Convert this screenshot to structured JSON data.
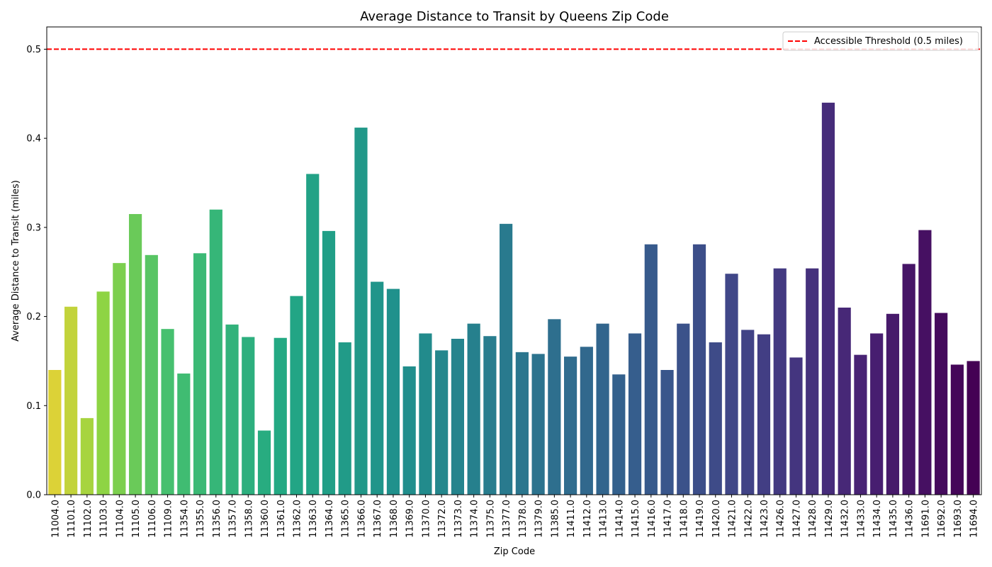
{
  "chart_data": {
    "type": "bar",
    "title": "Average Distance to Transit by Queens Zip Code",
    "xlabel": "Zip Code",
    "ylabel": "Average Distance to Transit (miles)",
    "ylim": [
      0,
      0.525
    ],
    "yticks": [
      "0.0",
      "0.1",
      "0.2",
      "0.3",
      "0.4",
      "0.5"
    ],
    "grid": false,
    "legend": {
      "position": "top-right",
      "entries": [
        "Accessible Threshold (0.5 miles)"
      ]
    },
    "threshold": {
      "name": "Accessible Threshold (0.5 miles)",
      "value": 0.5,
      "color": "#ff0000",
      "style": "dashed"
    },
    "palette": "viridis-reversed",
    "categories": [
      "11004.0",
      "11101.0",
      "11102.0",
      "11103.0",
      "11104.0",
      "11105.0",
      "11106.0",
      "11109.0",
      "11354.0",
      "11355.0",
      "11356.0",
      "11357.0",
      "11358.0",
      "11360.0",
      "11361.0",
      "11362.0",
      "11363.0",
      "11364.0",
      "11365.0",
      "11366.0",
      "11367.0",
      "11368.0",
      "11369.0",
      "11370.0",
      "11372.0",
      "11373.0",
      "11374.0",
      "11375.0",
      "11377.0",
      "11378.0",
      "11379.0",
      "11385.0",
      "11411.0",
      "11412.0",
      "11413.0",
      "11414.0",
      "11415.0",
      "11416.0",
      "11417.0",
      "11418.0",
      "11419.0",
      "11420.0",
      "11421.0",
      "11422.0",
      "11423.0",
      "11426.0",
      "11427.0",
      "11428.0",
      "11429.0",
      "11432.0",
      "11433.0",
      "11434.0",
      "11435.0",
      "11436.0",
      "11691.0",
      "11692.0",
      "11693.0",
      "11694.0"
    ],
    "values": [
      0.14,
      0.211,
      0.086,
      0.228,
      0.26,
      0.315,
      0.269,
      0.186,
      0.136,
      0.271,
      0.32,
      0.191,
      0.177,
      0.072,
      0.176,
      0.223,
      0.36,
      0.296,
      0.171,
      0.412,
      0.239,
      0.231,
      0.144,
      0.181,
      0.162,
      0.175,
      0.192,
      0.178,
      0.304,
      0.16,
      0.158,
      0.197,
      0.155,
      0.166,
      0.192,
      0.135,
      0.181,
      0.281,
      0.14,
      0.192,
      0.281,
      0.171,
      0.248,
      0.185,
      0.18,
      0.254,
      0.154,
      0.254,
      0.44,
      0.21,
      0.157,
      0.181,
      0.203,
      0.259,
      0.297,
      0.204,
      0.146,
      0.15
    ]
  }
}
